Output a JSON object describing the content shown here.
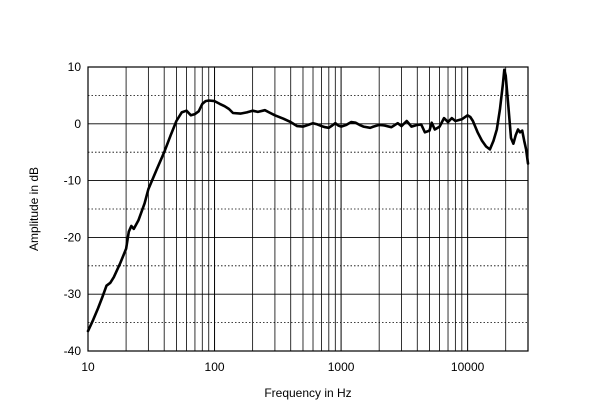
{
  "chart_data": {
    "type": "line",
    "title": "",
    "xlabel": "Frequency in Hz",
    "ylabel": "Amplitude in dB",
    "x_scale": "log",
    "xlim": [
      10,
      30000
    ],
    "ylim": [
      -40,
      10
    ],
    "x_ticks": [
      10,
      100,
      1000,
      10000
    ],
    "x_tick_labels": [
      "10",
      "100",
      "1000",
      "10000"
    ],
    "y_ticks": [
      10,
      0,
      -10,
      -20,
      -30,
      -40
    ],
    "y_tick_labels": [
      "10",
      "0",
      "-10",
      "-20",
      "-30",
      "-40"
    ],
    "grid": true,
    "legend": "none",
    "series": [
      {
        "color": "#000000",
        "points": [
          [
            10,
            -36.5
          ],
          [
            11,
            -34.5
          ],
          [
            12,
            -32.5
          ],
          [
            13,
            -30.5
          ],
          [
            14,
            -28.5
          ],
          [
            15,
            -28
          ],
          [
            16,
            -27
          ],
          [
            18,
            -24.5
          ],
          [
            20,
            -22
          ],
          [
            21,
            -19
          ],
          [
            22,
            -18
          ],
          [
            23,
            -18.5
          ],
          [
            25,
            -17
          ],
          [
            28,
            -14
          ],
          [
            30,
            -11.5
          ],
          [
            35,
            -8
          ],
          [
            40,
            -5
          ],
          [
            45,
            -2
          ],
          [
            50,
            0.5
          ],
          [
            55,
            2
          ],
          [
            60,
            2.3
          ],
          [
            65,
            1.5
          ],
          [
            70,
            1.7
          ],
          [
            75,
            2.2
          ],
          [
            80,
            3.5
          ],
          [
            85,
            4.0
          ],
          [
            90,
            4.1
          ],
          [
            100,
            4.0
          ],
          [
            110,
            3.5
          ],
          [
            120,
            3.1
          ],
          [
            130,
            2.6
          ],
          [
            140,
            1.9
          ],
          [
            160,
            1.8
          ],
          [
            180,
            2.0
          ],
          [
            200,
            2.3
          ],
          [
            220,
            2.1
          ],
          [
            250,
            2.4
          ],
          [
            270,
            2.0
          ],
          [
            300,
            1.5
          ],
          [
            350,
            0.9
          ],
          [
            400,
            0.3
          ],
          [
            450,
            -0.4
          ],
          [
            500,
            -0.5
          ],
          [
            550,
            -0.2
          ],
          [
            600,
            0.1
          ],
          [
            650,
            -0.1
          ],
          [
            700,
            -0.4
          ],
          [
            750,
            -0.6
          ],
          [
            800,
            -0.7
          ],
          [
            850,
            -0.3
          ],
          [
            900,
            0.1
          ],
          [
            950,
            -0.3
          ],
          [
            1000,
            -0.5
          ],
          [
            1100,
            -0.2
          ],
          [
            1200,
            0.3
          ],
          [
            1300,
            0.2
          ],
          [
            1400,
            -0.2
          ],
          [
            1500,
            -0.5
          ],
          [
            1700,
            -0.7
          ],
          [
            1800,
            -0.5
          ],
          [
            2000,
            -0.2
          ],
          [
            2200,
            -0.3
          ],
          [
            2500,
            -0.6
          ],
          [
            2800,
            0.1
          ],
          [
            3000,
            -0.4
          ],
          [
            3300,
            0.5
          ],
          [
            3600,
            -0.5
          ],
          [
            4000,
            -0.2
          ],
          [
            4300,
            -0.1
          ],
          [
            4600,
            -1.5
          ],
          [
            5000,
            -1.2
          ],
          [
            5200,
            0.2
          ],
          [
            5500,
            -1.0
          ],
          [
            6000,
            -0.5
          ],
          [
            6500,
            1.0
          ],
          [
            7000,
            0.3
          ],
          [
            7500,
            1.0
          ],
          [
            8000,
            0.5
          ],
          [
            9000,
            0.8
          ],
          [
            10000,
            1.5
          ],
          [
            10500,
            1.2
          ],
          [
            11000,
            0.5
          ],
          [
            12000,
            -1.5
          ],
          [
            13000,
            -3.0
          ],
          [
            14000,
            -4.0
          ],
          [
            15000,
            -4.5
          ],
          [
            16000,
            -3.0
          ],
          [
            17000,
            -1.0
          ],
          [
            18000,
            2.5
          ],
          [
            19000,
            7.0
          ],
          [
            19500,
            9.5
          ],
          [
            20000,
            8.5
          ],
          [
            21000,
            3.0
          ],
          [
            22000,
            -2.5
          ],
          [
            23000,
            -3.5
          ],
          [
            24000,
            -2.0
          ],
          [
            25000,
            -1.0
          ],
          [
            26000,
            -1.5
          ],
          [
            27000,
            -1.2
          ],
          [
            28000,
            -3.0
          ],
          [
            29000,
            -4.5
          ],
          [
            30000,
            -7.0
          ]
        ]
      }
    ]
  }
}
